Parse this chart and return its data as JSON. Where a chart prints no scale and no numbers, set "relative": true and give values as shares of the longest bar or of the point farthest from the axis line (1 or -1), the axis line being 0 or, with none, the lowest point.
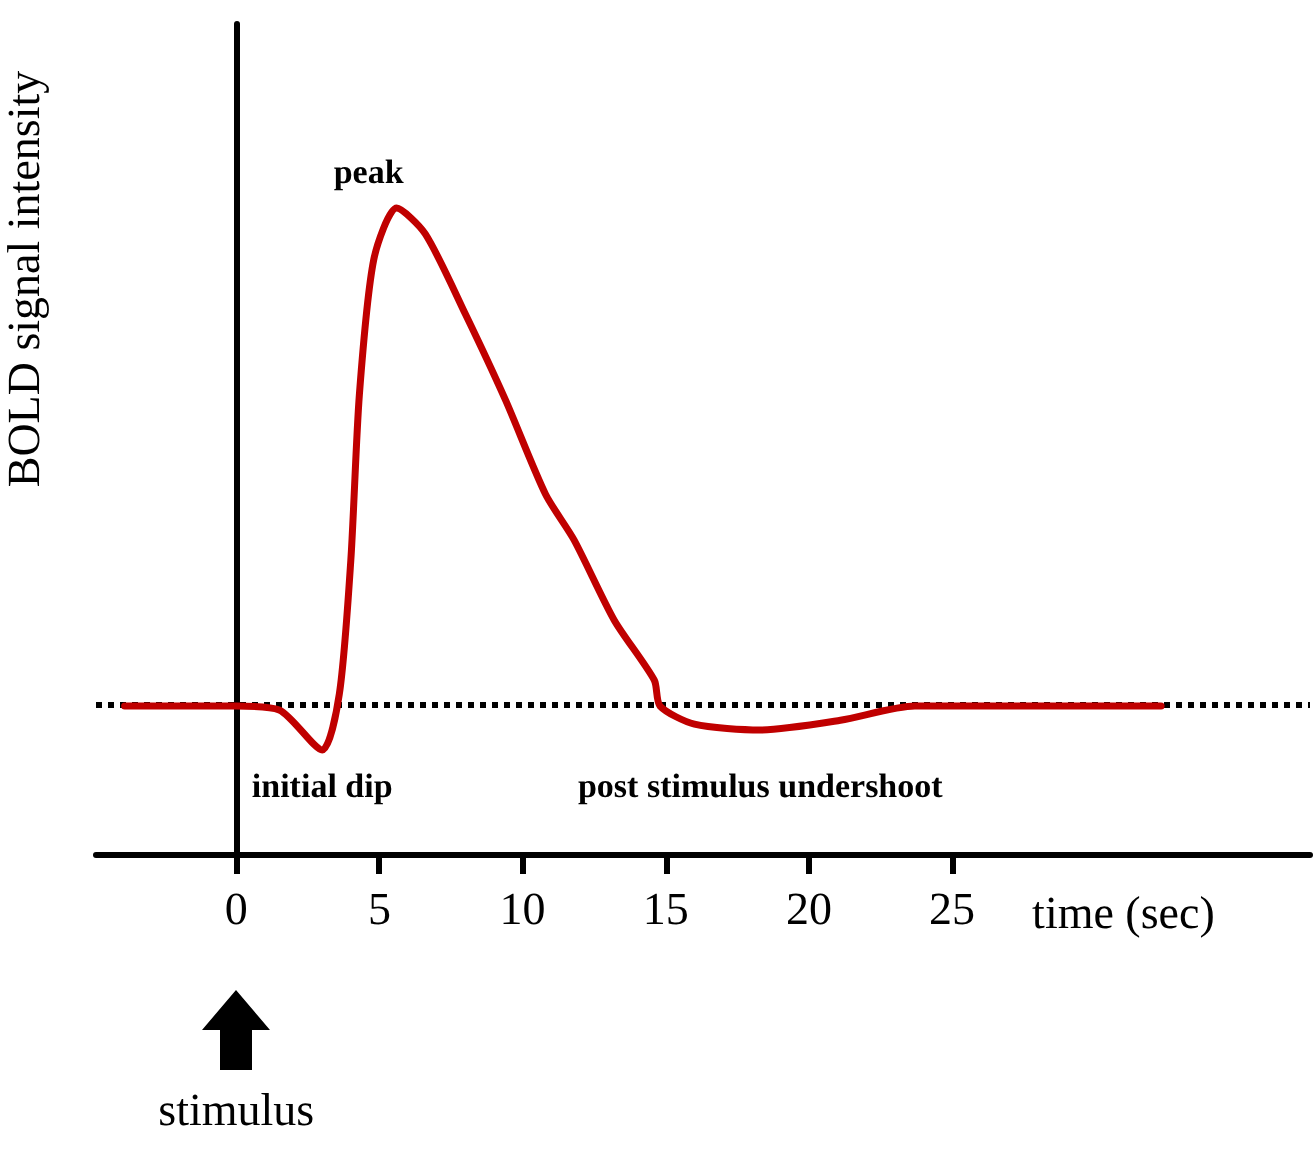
{
  "chart_data": {
    "type": "line",
    "relative": true,
    "xlabel": "time (sec)",
    "ylabel": "BOLD signal intensity",
    "x": [
      -3.9,
      0,
      1.5,
      3.0,
      3.6,
      4.0,
      4.3,
      4.8,
      5.6,
      6.6,
      8.0,
      9.4,
      10.8,
      11.8,
      13.2,
      14.6,
      14.8,
      16.0,
      18.3,
      21.1,
      23.7,
      32.3
    ],
    "series": [
      {
        "color": "#c00000",
        "values": [
          0.229,
          0.229,
          0.223,
          0.161,
          0.248,
          0.455,
          0.712,
          0.92,
          1.0,
          0.96,
          0.836,
          0.703,
          0.557,
          0.486,
          0.362,
          0.269,
          0.229,
          0.201,
          0.192,
          0.207,
          0.229,
          0.229
        ]
      }
    ],
    "xlim": [
      -4.9,
      37.5
    ],
    "xticks": [
      0,
      5,
      10,
      15,
      20,
      25
    ],
    "ref_lines": [
      {
        "axis": "y",
        "value": 0.229,
        "color": "#000000",
        "line_style": "dotted"
      }
    ],
    "annotations": [
      {
        "text": "peak",
        "x": 5.6,
        "y": 1.0
      },
      {
        "text": "initial dip",
        "x": 3.0,
        "y": 0.161
      },
      {
        "text": "post stimulus undershoot",
        "x": 18.3,
        "y": 0.192
      },
      "stimulus"
    ],
    "marker": "none",
    "line_style": "solid"
  }
}
